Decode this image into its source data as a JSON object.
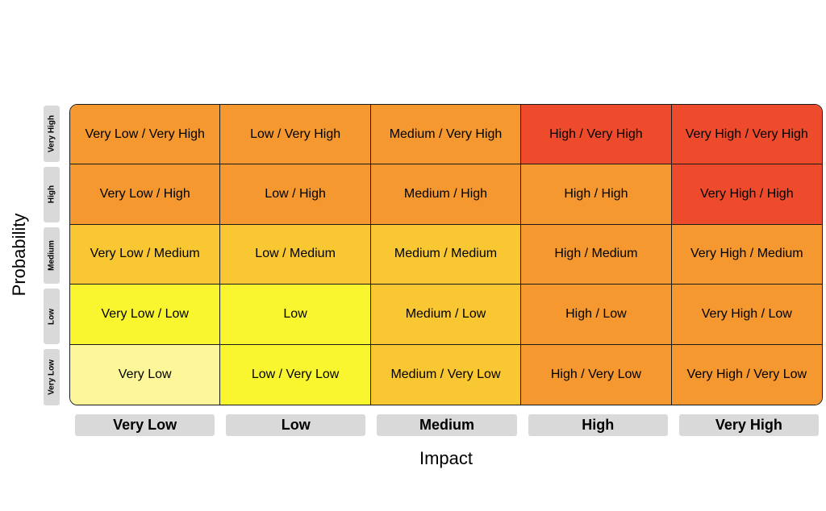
{
  "axes": {
    "x_title": "Impact",
    "y_title": "Probability",
    "x_labels": [
      "Very Low",
      "Low",
      "Medium",
      "High",
      "Very High"
    ],
    "y_labels_top_to_bottom": [
      "Very High",
      "High",
      "Medium",
      "Low",
      "Very Low"
    ]
  },
  "colors": {
    "pale_yellow": "#fdf79a",
    "yellow": "#f9f62f",
    "light_orange": "#f8c731",
    "orange": "#f4982f",
    "red": "#ee4a2c",
    "label_gray": "#d9d9d9"
  },
  "matrix": {
    "rows": [
      {
        "probability": "Very High",
        "cells": [
          {
            "label": "Very Low / Very High",
            "color": "#f4982f"
          },
          {
            "label": "Low / Very High",
            "color": "#f4982f"
          },
          {
            "label": "Medium / Very High",
            "color": "#f4982f"
          },
          {
            "label": "High / Very High",
            "color": "#ee4a2c"
          },
          {
            "label": "Very High / Very High",
            "color": "#ee4a2c"
          }
        ]
      },
      {
        "probability": "High",
        "cells": [
          {
            "label": "Very Low / High",
            "color": "#f4982f"
          },
          {
            "label": "Low / High",
            "color": "#f4982f"
          },
          {
            "label": "Medium / High",
            "color": "#f4982f"
          },
          {
            "label": "High / High",
            "color": "#f4982f"
          },
          {
            "label": "Very High / High",
            "color": "#ee4a2c"
          }
        ]
      },
      {
        "probability": "Medium",
        "cells": [
          {
            "label": "Very Low / Medium",
            "color": "#f8c731"
          },
          {
            "label": "Low / Medium",
            "color": "#f8c731"
          },
          {
            "label": "Medium / Medium",
            "color": "#f8c731"
          },
          {
            "label": "High / Medium",
            "color": "#f4982f"
          },
          {
            "label": "Very High / Medium",
            "color": "#f4982f"
          }
        ]
      },
      {
        "probability": "Low",
        "cells": [
          {
            "label": "Very Low / Low",
            "color": "#f9f62f"
          },
          {
            "label": "Low",
            "color": "#f9f62f"
          },
          {
            "label": "Medium / Low",
            "color": "#f8c731"
          },
          {
            "label": "High / Low",
            "color": "#f4982f"
          },
          {
            "label": "Very High / Low",
            "color": "#f4982f"
          }
        ]
      },
      {
        "probability": "Very Low",
        "cells": [
          {
            "label": "Very Low",
            "color": "#fdf79a"
          },
          {
            "label": "Low / Very Low",
            "color": "#f9f62f"
          },
          {
            "label": "Medium / Very Low",
            "color": "#f8c731"
          },
          {
            "label": "High / Very Low",
            "color": "#f4982f"
          },
          {
            "label": "Very High / Very Low",
            "color": "#f4982f"
          }
        ]
      }
    ]
  }
}
